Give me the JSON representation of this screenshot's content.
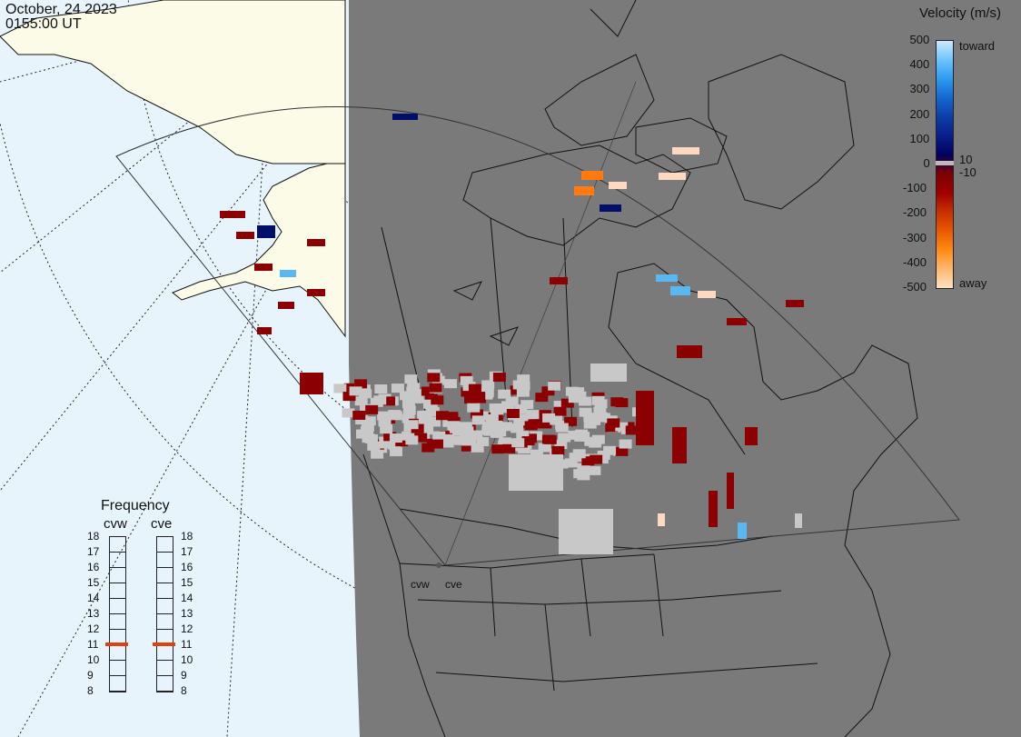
{
  "timestamp": {
    "date": "October, 24 2023",
    "time": "0155:00 UT"
  },
  "legend": {
    "title": "Velocity (m/s)",
    "ticks": [
      "500",
      "400",
      "300",
      "200",
      "100",
      "0",
      "-100",
      "-200",
      "-300",
      "-400",
      "-500"
    ],
    "small_pos": "10",
    "small_neg": "-10",
    "toward": "toward",
    "away": "away",
    "colors": [
      "#cce8ff",
      "#6fc3ff",
      "#2b9bf0",
      "#1466d0",
      "#0b3ea8",
      "#081f8a",
      "#000060",
      "#800000",
      "#a00000",
      "#c83000",
      "#e85a00",
      "#ff8c10",
      "#ffb870",
      "#ffe0c0"
    ]
  },
  "frequency": {
    "title": "Frequency",
    "radars": [
      {
        "name": "cvw",
        "value": 11
      },
      {
        "name": "cve",
        "value": 11
      }
    ],
    "scale": [
      "18",
      "17",
      "16",
      "15",
      "14",
      "13",
      "12",
      "11",
      "10",
      "9",
      "8"
    ],
    "indicator_color": "#e04010"
  },
  "radar_sites": [
    "cvw",
    "cve"
  ],
  "colors": {
    "ocean": "#e8f4fc",
    "land_sunlit": "#fbfbe8",
    "night": "#7a7a7a",
    "ground_scatter": "#c8c8c8"
  }
}
